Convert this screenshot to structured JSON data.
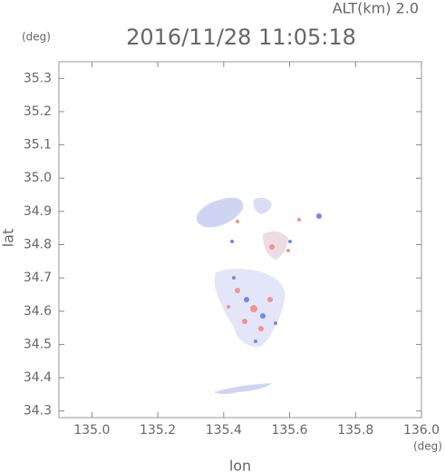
{
  "chart_data": {
    "type": "map",
    "title": "2016/11/28 11:05:18",
    "altitude_label": "ALT(km) 2.0",
    "x_label": "lon",
    "y_label": "lat",
    "x_unit": "(deg)",
    "y_unit": "(deg)",
    "xlim": [
      134.9,
      136.0
    ],
    "xticks": [
      {
        "value": 135,
        "label": "135.0"
      },
      135.2,
      135.4,
      135.6,
      135.8,
      {
        "value": 136,
        "label": "136.0"
      }
    ],
    "ylim": [
      34.28,
      35.35
    ],
    "yticks": [
      34.3,
      34.4,
      34.5,
      34.6,
      34.7,
      34.8,
      34.9,
      {
        "value": 35,
        "label": "35.0"
      },
      35.1,
      35.2,
      35.3
    ]
  }
}
